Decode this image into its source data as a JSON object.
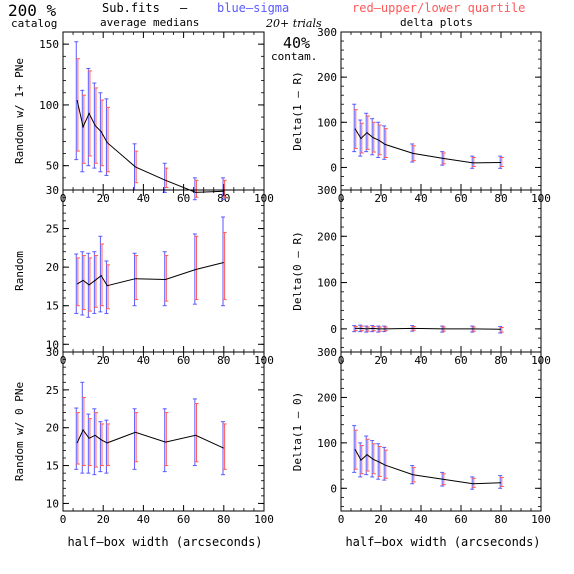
{
  "header": {
    "percent": "200 %",
    "catalog": "catalog",
    "file": "Sub.fits",
    "dash": "–",
    "averages": "average medians",
    "blue_legend": "blue–sigma",
    "red_legend": "red–upper/lower quartile",
    "trials": "20+ trials",
    "contam_value": "40%",
    "contam": "contam.",
    "delta_title": "delta plots"
  },
  "colors": {
    "blue": "#5a5aff",
    "red": "#ff5a5a",
    "line": "#000000"
  },
  "chart_data": [
    {
      "type": "line",
      "ylabel": "Random w/ 1+ PNe",
      "xlim": [
        0,
        100
      ],
      "ylim": [
        30,
        160
      ],
      "xticks": [
        "0",
        "20",
        "40",
        "60",
        "80",
        "100"
      ],
      "yticks": [
        "50",
        "100",
        "150"
      ],
      "x": [
        7,
        10,
        13,
        16,
        19,
        22,
        36,
        51,
        66,
        80
      ],
      "y": [
        104,
        82,
        93,
        83,
        78,
        69,
        49,
        38,
        28,
        29
      ],
      "sigma": [
        [
          55,
          152
        ],
        [
          45,
          112
        ],
        [
          50,
          130
        ],
        [
          48,
          118
        ],
        [
          45,
          110
        ],
        [
          42,
          105
        ],
        [
          30,
          68
        ],
        [
          28,
          52
        ],
        [
          22,
          40
        ],
        [
          22,
          40
        ]
      ],
      "quartile": [
        [
          62,
          138
        ],
        [
          52,
          108
        ],
        [
          58,
          128
        ],
        [
          52,
          114
        ],
        [
          50,
          104
        ],
        [
          45,
          98
        ],
        [
          36,
          62
        ],
        [
          32,
          48
        ],
        [
          24,
          38
        ],
        [
          24,
          38
        ]
      ]
    },
    {
      "type": "line",
      "ylabel": "Delta(1 – R)",
      "xlim": [
        0,
        100
      ],
      "ylim": [
        -50,
        300
      ],
      "xticks": [
        "0",
        "20",
        "40",
        "60",
        "80",
        "100"
      ],
      "yticks": [
        "0",
        "100",
        "200",
        "300"
      ],
      "x": [
        7,
        10,
        13,
        16,
        19,
        22,
        36,
        51,
        66,
        80
      ],
      "y": [
        86,
        64,
        77,
        66,
        60,
        51,
        31,
        20,
        10,
        11
      ],
      "sigma": [
        [
          35,
          140
        ],
        [
          25,
          105
        ],
        [
          35,
          120
        ],
        [
          28,
          108
        ],
        [
          22,
          100
        ],
        [
          18,
          92
        ],
        [
          12,
          52
        ],
        [
          5,
          35
        ],
        [
          -2,
          25
        ],
        [
          -2,
          25
        ]
      ],
      "quartile": [
        [
          42,
          128
        ],
        [
          32,
          98
        ],
        [
          40,
          114
        ],
        [
          34,
          100
        ],
        [
          28,
          94
        ],
        [
          22,
          86
        ],
        [
          15,
          48
        ],
        [
          8,
          32
        ],
        [
          2,
          22
        ],
        [
          2,
          22
        ]
      ]
    },
    {
      "type": "line",
      "ylabel": "Random",
      "xlim": [
        0,
        100
      ],
      "ylim": [
        9,
        30
      ],
      "xticks": [
        "0",
        "20",
        "40",
        "60",
        "80",
        "100"
      ],
      "yticks": [
        "10",
        "15",
        "20",
        "25",
        "30"
      ],
      "x": [
        7,
        10,
        13,
        16,
        19,
        22,
        36,
        51,
        66,
        80
      ],
      "y": [
        17.8,
        18.3,
        17.7,
        18.3,
        18.9,
        17.6,
        18.5,
        18.4,
        19.7,
        20.6
      ],
      "sigma": [
        [
          14.0,
          21.7
        ],
        [
          13.8,
          22.0
        ],
        [
          13.5,
          21.8
        ],
        [
          14.0,
          22.0
        ],
        [
          14.2,
          24.0
        ],
        [
          14.0,
          20.8
        ],
        [
          15.0,
          21.8
        ],
        [
          15.0,
          22.0
        ],
        [
          15.2,
          24.3
        ],
        [
          15.0,
          26.5
        ]
      ],
      "quartile": [
        [
          15.0,
          21.2
        ],
        [
          14.5,
          21.5
        ],
        [
          14.3,
          21.2
        ],
        [
          14.8,
          21.5
        ],
        [
          15.0,
          23.0
        ],
        [
          14.6,
          20.3
        ],
        [
          15.8,
          21.5
        ],
        [
          15.6,
          21.5
        ],
        [
          15.8,
          24.0
        ],
        [
          15.8,
          24.5
        ]
      ]
    },
    {
      "type": "line",
      "ylabel": "Delta(0 – R)",
      "xlim": [
        0,
        100
      ],
      "ylim": [
        -50,
        300
      ],
      "xticks": [
        "0",
        "20",
        "40",
        "60",
        "80",
        "100"
      ],
      "yticks": [
        "0",
        "100",
        "200",
        "300"
      ],
      "x": [
        7,
        10,
        13,
        16,
        19,
        22,
        36,
        51,
        66,
        80
      ],
      "y": [
        1,
        1,
        0,
        1,
        0,
        0,
        1,
        0,
        0,
        -1
      ],
      "sigma": [
        [
          -6,
          7
        ],
        [
          -6,
          8
        ],
        [
          -7,
          6
        ],
        [
          -6,
          7
        ],
        [
          -7,
          6
        ],
        [
          -6,
          6
        ],
        [
          -5,
          7
        ],
        [
          -7,
          6
        ],
        [
          -7,
          6
        ],
        [
          -9,
          5
        ]
      ],
      "quartile": [
        [
          -4,
          5
        ],
        [
          -4,
          6
        ],
        [
          -5,
          4
        ],
        [
          -4,
          5
        ],
        [
          -5,
          4
        ],
        [
          -4,
          4
        ],
        [
          -3,
          5
        ],
        [
          -5,
          4
        ],
        [
          -5,
          4
        ],
        [
          -7,
          3
        ]
      ]
    },
    {
      "type": "line",
      "ylabel": "Random w/ 0 PNe",
      "xlim": [
        0,
        100
      ],
      "ylim": [
        9,
        30
      ],
      "xticks": [
        "0",
        "20",
        "40",
        "60",
        "80",
        "100"
      ],
      "yticks": [
        "10",
        "15",
        "20",
        "25",
        "30"
      ],
      "x": [
        7,
        10,
        13,
        16,
        19,
        22,
        36,
        51,
        66,
        80
      ],
      "y": [
        18.0,
        19.7,
        18.6,
        19.0,
        18.4,
        18.0,
        19.4,
        18.1,
        19.0,
        17.3
      ],
      "sigma": [
        [
          14.5,
          22.6
        ],
        [
          14.0,
          26.0
        ],
        [
          14.0,
          21.8
        ],
        [
          13.8,
          22.5
        ],
        [
          14.2,
          20.8
        ],
        [
          14.0,
          21.0
        ],
        [
          14.5,
          22.5
        ],
        [
          14.2,
          22.5
        ],
        [
          15.0,
          23.8
        ],
        [
          13.8,
          20.8
        ]
      ],
      "quartile": [
        [
          15.2,
          22.0
        ],
        [
          15.0,
          24.0
        ],
        [
          15.0,
          21.2
        ],
        [
          14.8,
          22.0
        ],
        [
          15.0,
          20.5
        ],
        [
          15.0,
          20.5
        ],
        [
          15.5,
          22.0
        ],
        [
          15.0,
          22.0
        ],
        [
          15.5,
          23.2
        ],
        [
          14.5,
          20.5
        ]
      ],
      "xlabel": "half–box width (arcseconds)"
    },
    {
      "type": "line",
      "ylabel": "Delta(1 – 0)",
      "xlim": [
        0,
        100
      ],
      "ylim": [
        -50,
        300
      ],
      "xticks": [
        "0",
        "20",
        "40",
        "60",
        "80",
        "100"
      ],
      "yticks": [
        "0",
        "100",
        "200",
        "300"
      ],
      "x": [
        7,
        10,
        13,
        16,
        19,
        22,
        36,
        51,
        66,
        80
      ],
      "y": [
        86,
        62,
        74,
        64,
        58,
        51,
        30,
        20,
        10,
        12
      ],
      "sigma": [
        [
          35,
          138
        ],
        [
          25,
          100
        ],
        [
          30,
          115
        ],
        [
          25,
          105
        ],
        [
          20,
          98
        ],
        [
          18,
          90
        ],
        [
          10,
          50
        ],
        [
          5,
          35
        ],
        [
          -2,
          25
        ],
        [
          0,
          28
        ]
      ],
      "quartile": [
        [
          42,
          128
        ],
        [
          32,
          94
        ],
        [
          38,
          108
        ],
        [
          32,
          98
        ],
        [
          26,
          92
        ],
        [
          22,
          84
        ],
        [
          14,
          46
        ],
        [
          8,
          32
        ],
        [
          2,
          22
        ],
        [
          4,
          24
        ]
      ],
      "xlabel": "half–box width (arcseconds)"
    }
  ]
}
